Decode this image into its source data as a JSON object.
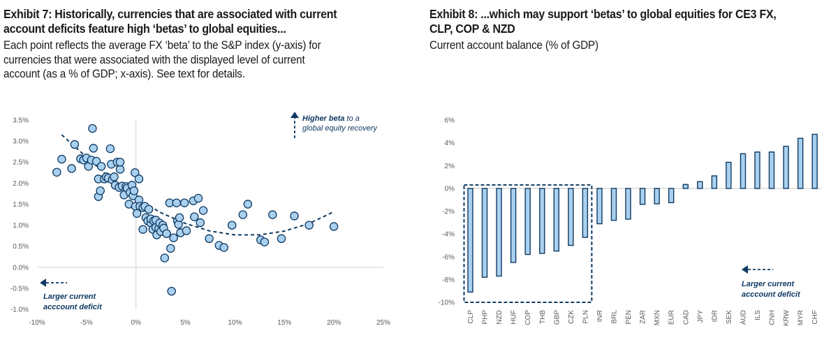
{
  "colors": {
    "marker_fill": "#a9d0ef",
    "marker_stroke": "#0f3a62",
    "axis": "#d9d9d9",
    "tick_text": "#595959",
    "annotation": "#0f3a62"
  },
  "exhibit7": {
    "title_line1": "Exhibit 7: Historically, currencies that are associated with current",
    "title_line2": "account deficits feature high ‘betas’ to global equities...",
    "subtitle_line1": "Each point reflects the average FX ‘beta’ to the S&P index (y-axis) for",
    "subtitle_line2": "currencies that were associated with the displayed level of current",
    "subtitle_line3": "account (as a % of GDP; x-axis). See text for details.",
    "annotation_up_bold": "Higher beta",
    "annotation_up_rest": " to a",
    "annotation_up_line2": "global equity recovery",
    "annotation_left_line1": "Larger current",
    "annotation_left_line2": "acccount deficit"
  },
  "exhibit8": {
    "title_line1": "Exhibit 8: ...which may support ‘betas’ to global equities for CE3 FX,",
    "title_line2": "CLP, COP & NZD",
    "subtitle": "Current account balance (% of GDP)",
    "annotation_left_line1": "Larger current",
    "annotation_left_line2": "acccount deficit"
  },
  "chart_data": [
    {
      "type": "scatter",
      "title": "Exhibit 7: Historically, currencies that are associated with current account deficits feature high ‘betas’ to global equities...",
      "xlabel": "Current account (% of GDP)",
      "ylabel": "Average FX beta to S&P index",
      "xlim": [
        -10,
        25
      ],
      "ylim": [
        -1.0,
        3.5
      ],
      "x_ticks": [
        "-10%",
        "-5%",
        "0%",
        "5%",
        "10%",
        "15%",
        "20%",
        "25%"
      ],
      "y_ticks": [
        "3.5%",
        "3.0%",
        "2.5%",
        "2.0%",
        "1.5%",
        "1.0%",
        "0.5%",
        "0.0%",
        "-0.5%",
        "-1.0%"
      ],
      "grid": false,
      "trendline": {
        "style": "dashed",
        "kind": "quadratic",
        "points": [
          [
            -7.5,
            3.15
          ],
          [
            -5,
            2.62
          ],
          [
            -2.5,
            2.1
          ],
          [
            0,
            1.65
          ],
          [
            2.5,
            1.3
          ],
          [
            5,
            1.04
          ],
          [
            7.5,
            0.86
          ],
          [
            10,
            0.77
          ],
          [
            12.5,
            0.77
          ],
          [
            15,
            0.86
          ],
          [
            17.5,
            1.04
          ],
          [
            20,
            1.32
          ]
        ]
      },
      "points": [
        [
          -8.0,
          2.26
        ],
        [
          -7.5,
          2.57
        ],
        [
          -6.5,
          2.35
        ],
        [
          -6.2,
          2.92
        ],
        [
          -5.6,
          2.58
        ],
        [
          -5.3,
          2.55
        ],
        [
          -5.0,
          2.6
        ],
        [
          -4.8,
          2.4
        ],
        [
          -4.5,
          2.55
        ],
        [
          -4.4,
          3.3
        ],
        [
          -4.3,
          2.83
        ],
        [
          -4.0,
          2.52
        ],
        [
          -3.8,
          2.1
        ],
        [
          -3.8,
          1.68
        ],
        [
          -3.6,
          1.82
        ],
        [
          -3.5,
          2.4
        ],
        [
          -3.2,
          2.1
        ],
        [
          -3.0,
          2.15
        ],
        [
          -2.8,
          2.12
        ],
        [
          -2.6,
          2.82
        ],
        [
          -2.5,
          2.45
        ],
        [
          -2.4,
          2.08
        ],
        [
          -2.2,
          2.15
        ],
        [
          -2.1,
          1.95
        ],
        [
          -1.9,
          2.5
        ],
        [
          -1.7,
          1.9
        ],
        [
          -1.6,
          2.33
        ],
        [
          -1.6,
          2.5
        ],
        [
          -1.4,
          1.93
        ],
        [
          -1.2,
          1.72
        ],
        [
          -1.0,
          1.92
        ],
        [
          -0.9,
          1.88
        ],
        [
          -0.7,
          1.5
        ],
        [
          -0.6,
          1.78
        ],
        [
          -0.4,
          1.95
        ],
        [
          -0.3,
          1.7
        ],
        [
          -0.2,
          1.82
        ],
        [
          -0.1,
          2.25
        ],
        [
          -0.05,
          1.45
        ],
        [
          0.1,
          1.28
        ],
        [
          0.3,
          1.6
        ],
        [
          0.3,
          2.1
        ],
        [
          0.4,
          1.45
        ],
        [
          0.7,
          1.42
        ],
        [
          0.7,
          0.9
        ],
        [
          0.9,
          1.45
        ],
        [
          1.0,
          1.18
        ],
        [
          1.2,
          1.1
        ],
        [
          1.3,
          1.38
        ],
        [
          1.5,
          1.05
        ],
        [
          1.5,
          1.15
        ],
        [
          1.7,
          0.9
        ],
        [
          1.8,
          1.1
        ],
        [
          2.0,
          0.95
        ],
        [
          2.0,
          1.12
        ],
        [
          2.1,
          0.77
        ],
        [
          2.3,
          0.92
        ],
        [
          2.4,
          1.05
        ],
        [
          2.5,
          0.85
        ],
        [
          2.7,
          1.0
        ],
        [
          2.8,
          0.93
        ],
        [
          2.9,
          0.22
        ],
        [
          3.1,
          0.8
        ],
        [
          3.4,
          1.53
        ],
        [
          3.5,
          0.45
        ],
        [
          3.6,
          -0.57
        ],
        [
          3.8,
          0.7
        ],
        [
          4.1,
          1.53
        ],
        [
          4.2,
          1.1
        ],
        [
          4.3,
          1.02
        ],
        [
          4.4,
          1.18
        ],
        [
          4.5,
          0.82
        ],
        [
          4.9,
          1.53
        ],
        [
          5.1,
          0.87
        ],
        [
          5.8,
          1.58
        ],
        [
          5.9,
          1.2
        ],
        [
          6.3,
          1.64
        ],
        [
          6.5,
          1.06
        ],
        [
          6.8,
          1.35
        ],
        [
          7.4,
          0.68
        ],
        [
          8.4,
          0.52
        ],
        [
          8.9,
          0.47
        ],
        [
          9.7,
          1.0
        ],
        [
          10.8,
          1.25
        ],
        [
          11.3,
          1.5
        ],
        [
          12.6,
          0.65
        ],
        [
          13.0,
          0.6
        ],
        [
          13.8,
          1.25
        ],
        [
          14.7,
          0.68
        ],
        [
          16.0,
          1.22
        ],
        [
          17.5,
          1.0
        ],
        [
          20.0,
          0.97
        ]
      ]
    },
    {
      "type": "bar",
      "title": "Exhibit 8: ...which may support ‘betas’ to global equities for CE3 FX, CLP, COP & NZD",
      "subtitle": "Current account balance (% of GDP)",
      "xlabel": "",
      "ylabel": "Current account balance (% of GDP)",
      "ylim": [
        -10,
        6
      ],
      "y_ticks": [
        "6%",
        "4%",
        "2%",
        "0%",
        "-2%",
        "-4%",
        "-6%",
        "-8%",
        "-10%"
      ],
      "categories": [
        "CLP",
        "PHP",
        "NZD",
        "HUF",
        "COP",
        "THB",
        "GBP",
        "CZK",
        "PLN",
        "INR",
        "BRL",
        "PEN",
        "ZAR",
        "MXN",
        "EUR",
        "CAD",
        "JPY",
        "IDR",
        "SEK",
        "AUD",
        "ILS",
        "CNH",
        "KRW",
        "MYR",
        "CHF"
      ],
      "values": [
        -9.1,
        -7.8,
        -7.7,
        -6.5,
        -5.8,
        -5.7,
        -5.5,
        -5.0,
        -4.3,
        -3.1,
        -2.8,
        -2.7,
        -1.4,
        -1.35,
        -1.25,
        0.35,
        0.6,
        1.1,
        2.3,
        3.05,
        3.2,
        3.2,
        3.7,
        4.4,
        4.75
      ],
      "highlight_box": {
        "from": "CLP",
        "to": "PLN",
        "style": "dashed"
      },
      "grid": false
    }
  ]
}
